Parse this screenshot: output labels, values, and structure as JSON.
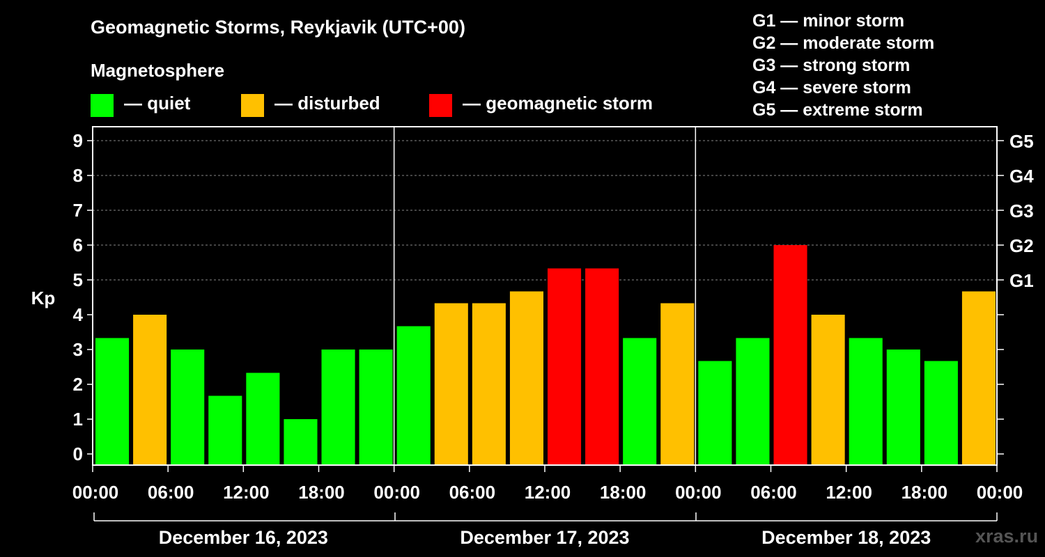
{
  "title": "Geomagnetic Storms, Reykjavik (UTC+00)",
  "legend": {
    "heading": "Magnetosphere",
    "items": [
      {
        "label": "— quiet",
        "color": "#00ff00"
      },
      {
        "label": "— disturbed",
        "color": "#ffc000"
      },
      {
        "label": "— geomagnetic storm",
        "color": "#ff0000"
      }
    ]
  },
  "storm_scale": [
    "G1 — minor storm",
    "G2 — moderate storm",
    "G3 — strong storm",
    "G4 — severe storm",
    "G5 — extreme storm"
  ],
  "watermark": "xras.ru",
  "chart_data": {
    "type": "bar",
    "ylabel": "Kp",
    "ylim": [
      0,
      9
    ],
    "yticks": [
      "0",
      "1",
      "2",
      "3",
      "4",
      "5",
      "6",
      "7",
      "8",
      "9"
    ],
    "right_axis_labels": [
      {
        "kp": 5,
        "label": "G1"
      },
      {
        "kp": 6,
        "label": "G2"
      },
      {
        "kp": 7,
        "label": "G3"
      },
      {
        "kp": 8,
        "label": "G4"
      },
      {
        "kp": 9,
        "label": "G5"
      }
    ],
    "xtick_labels": [
      "00:00",
      "06:00",
      "12:00",
      "18:00",
      "00:00",
      "06:00",
      "12:00",
      "18:00",
      "00:00",
      "06:00",
      "12:00",
      "18:00",
      "00:00"
    ],
    "days": [
      "December 16, 2023",
      "December 17, 2023",
      "December 18, 2023"
    ],
    "grid": "dashed horizontal lines at Kp 5–9",
    "values": [
      3.33,
      4.0,
      3.0,
      1.67,
      2.33,
      1.0,
      3.0,
      3.0,
      3.67,
      4.33,
      4.33,
      4.67,
      5.33,
      5.33,
      3.33,
      4.33,
      2.67,
      3.33,
      6.0,
      4.0,
      3.33,
      3.0,
      2.67,
      4.67
    ],
    "categories": [
      "quiet",
      "disturbed",
      "quiet",
      "quiet",
      "quiet",
      "quiet",
      "quiet",
      "quiet",
      "quiet",
      "disturbed",
      "disturbed",
      "disturbed",
      "storm",
      "storm",
      "quiet",
      "disturbed",
      "quiet",
      "quiet",
      "storm",
      "disturbed",
      "quiet",
      "quiet",
      "quiet",
      "disturbed"
    ],
    "colors": {
      "quiet": "#00ff00",
      "disturbed": "#ffc000",
      "storm": "#ff0000"
    }
  }
}
